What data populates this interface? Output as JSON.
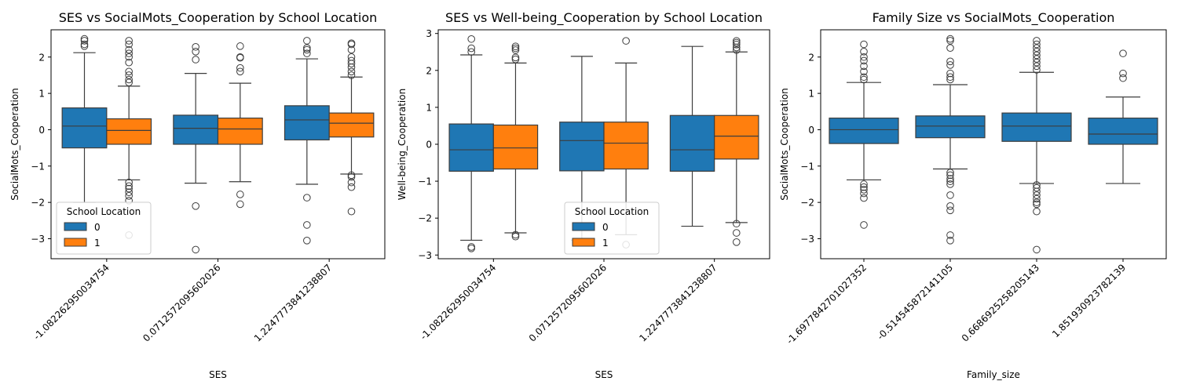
{
  "chart_data": [
    {
      "type": "box",
      "title": "SES vs SocialMots_Cooperation by School Location",
      "xlabel": "SES",
      "ylabel": "SocialMots_Cooperation",
      "ylim": [
        -3.55,
        2.75
      ],
      "yticks": [
        -3,
        -2,
        -1,
        0,
        1,
        2
      ],
      "categories": [
        "-1.082262950034754",
        "0.0712572095602026",
        "1.2247773841238807"
      ],
      "legend": {
        "title": "School Location",
        "loc": "lower left",
        "entries": [
          "0",
          "1"
        ]
      },
      "series": [
        {
          "name": "0",
          "color": "#1f77b4",
          "boxes": [
            {
              "whislo": -2.0,
              "q1": -0.5,
              "med": 0.1,
              "q3": 0.6,
              "whishi": 2.12,
              "fliers": [
                2.3,
                2.35,
                2.45,
                2.5
              ]
            },
            {
              "whislo": -1.47,
              "q1": -0.4,
              "med": 0.04,
              "q3": 0.4,
              "whishi": 1.55,
              "fliers": [
                1.93,
                2.15,
                2.28,
                -2.1,
                -3.3
              ]
            },
            {
              "whislo": -1.5,
              "q1": -0.28,
              "med": 0.27,
              "q3": 0.66,
              "whishi": 1.95,
              "fliers": [
                2.1,
                2.2,
                2.25,
                2.45,
                -1.87,
                -2.62,
                -3.05
              ]
            }
          ]
        },
        {
          "name": "1",
          "color": "#ff7f0e",
          "boxes": [
            {
              "whislo": -1.38,
              "q1": -0.4,
              "med": -0.02,
              "q3": 0.3,
              "whishi": 1.2,
              "fliers": [
                1.3,
                1.38,
                1.5,
                1.6,
                1.85,
                2.0,
                2.1,
                2.2,
                2.35,
                2.45,
                -1.45,
                -1.55,
                -1.62,
                -1.72,
                -1.82,
                -1.95,
                -2.9
              ]
            },
            {
              "whislo": -1.43,
              "q1": -0.4,
              "med": 0.02,
              "q3": 0.32,
              "whishi": 1.28,
              "fliers": [
                1.6,
                1.7,
                1.98,
                2.0,
                2.3,
                -1.78,
                -2.05
              ]
            },
            {
              "whislo": -1.22,
              "q1": -0.2,
              "med": 0.18,
              "q3": 0.46,
              "whishi": 1.45,
              "fliers": [
                1.5,
                1.6,
                1.72,
                1.82,
                1.9,
                2.0,
                2.2,
                2.35,
                2.38,
                -1.25,
                -1.3,
                -1.45,
                -1.58,
                -2.25
              ]
            }
          ]
        }
      ]
    },
    {
      "type": "box",
      "title": "SES vs Well-being_Cooperation by School Location",
      "xlabel": "SES",
      "ylabel": "Well-being_Cooperation",
      "ylim": [
        -3.1,
        3.1
      ],
      "yticks": [
        -3,
        -2,
        -1,
        0,
        1,
        2,
        3
      ],
      "categories": [
        "-1.082262950034754",
        "0.0712572095602026",
        "1.2247773841238807"
      ],
      "legend": {
        "title": "School Location",
        "loc": "lower center",
        "entries": [
          "0",
          "1"
        ]
      },
      "series": [
        {
          "name": "0",
          "color": "#1f77b4",
          "boxes": [
            {
              "whislo": -2.6,
              "q1": -0.73,
              "med": -0.15,
              "q3": 0.55,
              "whishi": 2.42,
              "fliers": [
                2.5,
                2.6,
                2.85,
                -2.78,
                -2.82
              ]
            },
            {
              "whislo": -2.6,
              "q1": -0.72,
              "med": 0.1,
              "q3": 0.6,
              "whishi": 2.38,
              "fliers": []
            },
            {
              "whislo": -2.22,
              "q1": -0.73,
              "med": -0.15,
              "q3": 0.78,
              "whishi": 2.65,
              "fliers": []
            }
          ]
        },
        {
          "name": "1",
          "color": "#ff7f0e",
          "boxes": [
            {
              "whislo": -2.4,
              "q1": -0.67,
              "med": -0.1,
              "q3": 0.52,
              "whishi": 2.2,
              "fliers": [
                2.3,
                2.35,
                2.55,
                2.6,
                2.65,
                -2.45,
                -2.5
              ]
            },
            {
              "whislo": -2.45,
              "q1": -0.67,
              "med": 0.03,
              "q3": 0.6,
              "whishi": 2.2,
              "fliers": [
                2.8,
                -2.72
              ]
            },
            {
              "whislo": -2.12,
              "q1": -0.4,
              "med": 0.22,
              "q3": 0.78,
              "whishi": 2.5,
              "fliers": [
                2.55,
                2.62,
                2.7,
                2.75,
                2.8,
                -2.15,
                -2.4,
                -2.65
              ]
            }
          ]
        }
      ]
    },
    {
      "type": "box",
      "title": "Family Size vs SocialMots_Cooperation",
      "xlabel": "Family_size",
      "ylabel": "SocialMots_Cooperation",
      "ylim": [
        -3.55,
        2.75
      ],
      "yticks": [
        -3,
        -2,
        -1,
        0,
        1,
        2
      ],
      "categories": [
        "-1.6977842701027352",
        "-0.514545872141105",
        "0.6686925258205143",
        "1.851930923782139"
      ],
      "series": [
        {
          "name": "",
          "color": "#1f77b4",
          "boxes": [
            {
              "whislo": -1.38,
              "q1": -0.38,
              "med": 0.0,
              "q3": 0.32,
              "whishi": 1.3,
              "fliers": [
                1.38,
                1.45,
                1.6,
                1.75,
                1.9,
                2.0,
                2.15,
                2.35,
                -1.5,
                -1.58,
                -1.65,
                -1.75,
                -1.88,
                -2.62
              ]
            },
            {
              "whislo": -1.08,
              "q1": -0.22,
              "med": 0.1,
              "q3": 0.38,
              "whishi": 1.24,
              "fliers": [
                1.38,
                1.45,
                1.55,
                1.78,
                1.88,
                2.25,
                2.45,
                2.5,
                -1.18,
                -1.25,
                -1.35,
                -1.42,
                -1.5,
                -1.8,
                -2.1,
                -2.22,
                -2.9,
                -3.05
              ]
            },
            {
              "whislo": -1.48,
              "q1": -0.32,
              "med": 0.1,
              "q3": 0.46,
              "whishi": 1.58,
              "fliers": [
                1.65,
                1.75,
                1.85,
                1.95,
                2.05,
                2.15,
                2.25,
                2.35,
                2.45,
                -1.52,
                -1.6,
                -1.7,
                -1.8,
                -1.9,
                -2.0,
                -2.05,
                -2.25,
                -3.3
              ]
            },
            {
              "whislo": -1.48,
              "q1": -0.4,
              "med": -0.12,
              "q3": 0.32,
              "whishi": 0.9,
              "fliers": [
                1.42,
                1.55,
                2.1
              ]
            }
          ]
        }
      ]
    }
  ]
}
